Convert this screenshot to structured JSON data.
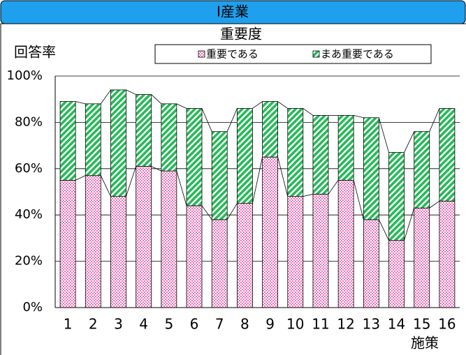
{
  "chart_data": {
    "type": "stacked_bar",
    "title": "Ⅰ産業",
    "y_label": "回答率",
    "x_label": "施策",
    "legend_title": "重要度",
    "categories": [
      "1",
      "2",
      "3",
      "4",
      "5",
      "6",
      "7",
      "8",
      "9",
      "10",
      "11",
      "12",
      "13",
      "14",
      "15",
      "16"
    ],
    "series": [
      {
        "name": "重要である",
        "color": "#ff99cc",
        "values": [
          55,
          57,
          48,
          61,
          59,
          44,
          38,
          45,
          65,
          48,
          49,
          55,
          38,
          29,
          43,
          46
        ]
      },
      {
        "name": "まあ重要である",
        "color": "#33cc66",
        "values": [
          34,
          31,
          46,
          31,
          29,
          42,
          38,
          41,
          24,
          38,
          34,
          28,
          44,
          38,
          33,
          40
        ]
      }
    ],
    "ylim": [
      0,
      100
    ],
    "yticks": [
      {
        "value": 0,
        "label": "0%"
      },
      {
        "value": 20,
        "label": "20%"
      },
      {
        "value": 40,
        "label": "40%"
      },
      {
        "value": 60,
        "label": "60%"
      },
      {
        "value": 80,
        "label": "80%"
      },
      {
        "value": 100,
        "label": "100%"
      }
    ],
    "grid": true
  }
}
